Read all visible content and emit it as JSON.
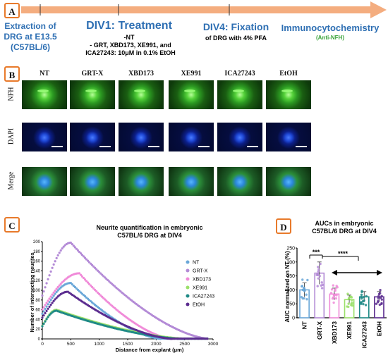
{
  "panels": {
    "a": "A",
    "b": "B",
    "c": "C",
    "d": "D"
  },
  "timeline": {
    "extraction": "Extraction of DRG at E13.5 (C57BL/6)",
    "div1_title": "DIV1: Treatment",
    "div1_line1": "-NT",
    "div1_line2": "- GRT, XBD173, XE991, and",
    "div1_line3": "ICA27243: 10μM in 0.1% EtOH",
    "div4_title": "DIV4: Fixation",
    "div4_sub": "of DRG with 4% PFA",
    "icc_title": "Immunocytochemistry",
    "icc_sub": "(Anti-NFH)"
  },
  "micro": {
    "columns": [
      "NT",
      "GRT-X",
      "XBD173",
      "XE991",
      "ICA27243",
      "EtOH"
    ],
    "rows": [
      "NFH",
      "DAPI",
      "Merge"
    ]
  },
  "colors": {
    "arrow": "#f4ad7f",
    "accent": "#e87a2b",
    "title_blue": "#2e6fb3",
    "anti_nfh": "#3aa33a"
  },
  "chart_c": {
    "title_line1": "Neurite quantification in embryonic",
    "title_line2": "C57BL/6 DRG at DIV4",
    "xlabel": "Distance from explant (μm)",
    "ylabel": "Number of intersecting neurites",
    "xticks": [
      "0",
      "500",
      "1000",
      "1500",
      "2000",
      "2500",
      "3000"
    ],
    "yticks": [
      "0",
      "20",
      "40",
      "60",
      "80",
      "100",
      "120",
      "140",
      "160",
      "180",
      "200"
    ]
  },
  "chart_d": {
    "title_line1": "AUCs in embryonic",
    "title_line2": "C57BL/6 DRG at DIV4",
    "ylabel": "AUC normalized on NT (%)",
    "yticks": [
      "0",
      "50",
      "100",
      "150",
      "200",
      "250"
    ],
    "sig1": "***",
    "sig2": "****"
  },
  "chart_data": [
    {
      "type": "scatter",
      "title": "Neurite quantification in embryonic C57BL/6 DRG at DIV4",
      "xlabel": "Distance from explant (μm)",
      "ylabel": "Number of intersecting neurites",
      "xlim": [
        0,
        3000
      ],
      "ylim": [
        0,
        200
      ],
      "legend_position": "right",
      "series": [
        {
          "name": "NT",
          "color": "#6aa7d8",
          "peak_x": 500,
          "peak_y": 115,
          "zero_x": 2100
        },
        {
          "name": "GRT-X",
          "color": "#b38ad6",
          "peak_x": 500,
          "peak_y": 198,
          "zero_x": 2950
        },
        {
          "name": "XBD173",
          "color": "#f08ad8",
          "peak_x": 650,
          "peak_y": 135,
          "zero_x": 2300
        },
        {
          "name": "XE991",
          "color": "#9be06a",
          "peak_x": 250,
          "peak_y": 60,
          "zero_x": 2600
        },
        {
          "name": "ICA27243",
          "color": "#1f8a86",
          "peak_x": 250,
          "peak_y": 58,
          "zero_x": 2500
        },
        {
          "name": "EtOH",
          "color": "#5b2c8f",
          "peak_x": 450,
          "peak_y": 97,
          "zero_x": 2300
        }
      ]
    },
    {
      "type": "bar",
      "title": "AUCs in embryonic C57BL/6 DRG at DIV4",
      "ylabel": "AUC normalized on NT (%)",
      "ylim": [
        0,
        250
      ],
      "categories": [
        "NT",
        "GRT-X",
        "XBD173",
        "XE991",
        "ICA27243",
        "EtOH"
      ],
      "values": [
        100,
        160,
        85,
        65,
        75,
        75
      ],
      "colors": [
        "#6aa7d8",
        "#b38ad6",
        "#f08ad8",
        "#9be06a",
        "#1f8a86",
        "#5b2c8f"
      ]
    }
  ]
}
